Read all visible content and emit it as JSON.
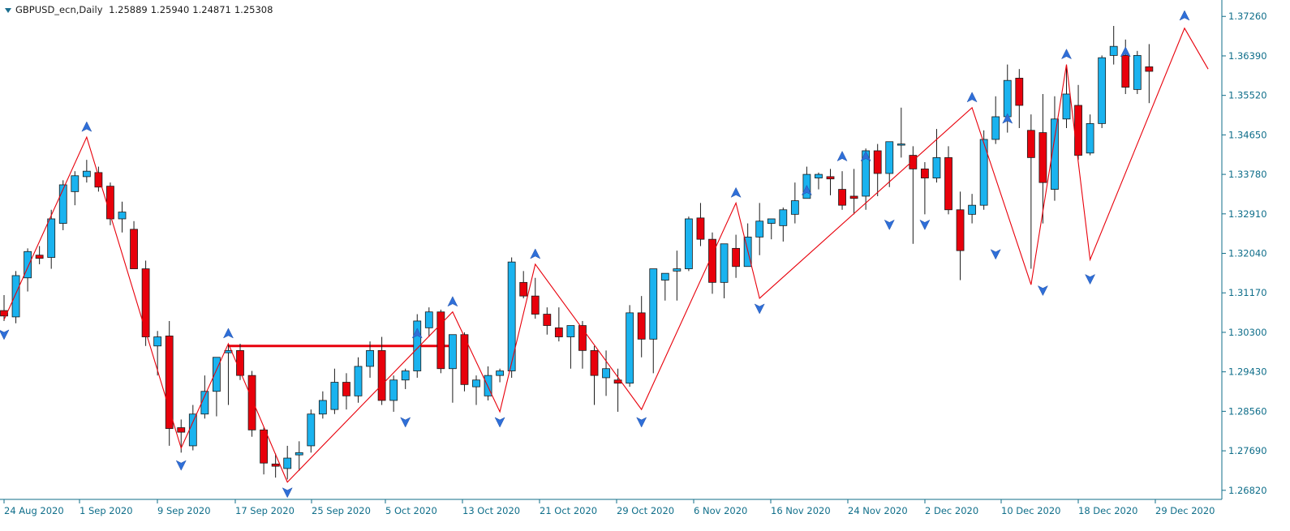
{
  "header": {
    "symbol": "GBPUSD_ecn,Daily",
    "open": "1.25889",
    "high": "1.25940",
    "low": "1.24871",
    "close": "1.25308"
  },
  "colors": {
    "bull": "#1ab3ef",
    "bear": "#e8000b",
    "zigzag": "#e8000b",
    "level": "#e8000b",
    "arrow": "#2f6fd8",
    "axis": "#0f6e8a",
    "wick": "#1b1b1b"
  },
  "chart_data": {
    "type": "candlestick",
    "y_ticks": [
      "1.37260",
      "1.36390",
      "1.35520",
      "1.34650",
      "1.33780",
      "1.32910",
      "1.32040",
      "1.31170",
      "1.30300",
      "1.29430",
      "1.28560",
      "1.27690",
      "1.26820"
    ],
    "x_labels": [
      "24 Aug 2020",
      "1 Sep 2020",
      "9 Sep 2020",
      "17 Sep 2020",
      "25 Sep 2020",
      "5 Oct 2020",
      "13 Oct 2020",
      "21 Oct 2020",
      "29 Oct 2020",
      "6 Nov 2020",
      "16 Nov 2020",
      "24 Nov 2020",
      "2 Dec 2020",
      "10 Dec 2020",
      "18 Dec 2020",
      "29 Dec 2020"
    ],
    "ylim": [
      1.2662,
      1.3755
    ],
    "candles": [
      [
        1.3078,
        1.3112,
        1.3055,
        1.3066
      ],
      [
        1.3064,
        1.3165,
        1.305,
        1.3155
      ],
      [
        1.315,
        1.3215,
        1.312,
        1.3208
      ],
      [
        1.32,
        1.322,
        1.318,
        1.3193
      ],
      [
        1.3195,
        1.33,
        1.317,
        1.328
      ],
      [
        1.327,
        1.3365,
        1.3255,
        1.3355
      ],
      [
        1.334,
        1.3385,
        1.331,
        1.3375
      ],
      [
        1.3373,
        1.341,
        1.336,
        1.3385
      ],
      [
        1.3382,
        1.3395,
        1.334,
        1.335
      ],
      [
        1.3352,
        1.336,
        1.3266,
        1.328
      ],
      [
        1.328,
        1.3318,
        1.325,
        1.3295
      ],
      [
        1.3257,
        1.3275,
        1.318,
        1.317
      ],
      [
        1.317,
        1.3188,
        1.3,
        1.302
      ],
      [
        1.3,
        1.3033,
        1.2935,
        1.302
      ],
      [
        1.3022,
        1.3055,
        1.278,
        1.2818
      ],
      [
        1.282,
        1.2838,
        1.2765,
        1.281
      ],
      [
        1.278,
        1.287,
        1.277,
        1.285
      ],
      [
        1.285,
        1.2935,
        1.284,
        1.29
      ],
      [
        1.29,
        1.2965,
        1.2845,
        1.2975
      ],
      [
        1.2985,
        1.3005,
        1.287,
        1.299
      ],
      [
        1.299,
        1.3005,
        1.2925,
        1.2935
      ],
      [
        1.2935,
        1.2945,
        1.28,
        1.2815
      ],
      [
        1.2815,
        1.282,
        1.2717,
        1.2742
      ],
      [
        1.274,
        1.2763,
        1.271,
        1.2735
      ],
      [
        1.273,
        1.278,
        1.2706,
        1.2753
      ],
      [
        1.276,
        1.279,
        1.2725,
        1.2765
      ],
      [
        1.278,
        1.286,
        1.2765,
        1.285
      ],
      [
        1.285,
        1.29,
        1.284,
        1.288
      ],
      [
        1.286,
        1.295,
        1.285,
        1.292
      ],
      [
        1.292,
        1.294,
        1.286,
        1.289
      ],
      [
        1.289,
        1.2975,
        1.2875,
        1.2955
      ],
      [
        1.2955,
        1.301,
        1.293,
        1.299
      ],
      [
        1.299,
        1.302,
        1.287,
        1.288
      ],
      [
        1.288,
        1.2935,
        1.2855,
        1.2925
      ],
      [
        1.2925,
        1.295,
        1.2905,
        1.2945
      ],
      [
        1.2945,
        1.307,
        1.293,
        1.3055
      ],
      [
        1.304,
        1.3085,
        1.302,
        1.3075
      ],
      [
        1.3075,
        1.308,
        1.294,
        1.295
      ],
      [
        1.295,
        1.3015,
        1.2875,
        1.3025
      ],
      [
        1.3025,
        1.303,
        1.29,
        1.2915
      ],
      [
        1.291,
        1.2935,
        1.287,
        1.2925
      ],
      [
        1.289,
        1.2955,
        1.288,
        1.2935
      ],
      [
        1.2935,
        1.295,
        1.292,
        1.2945
      ],
      [
        1.2945,
        1.3195,
        1.293,
        1.3185
      ],
      [
        1.314,
        1.3165,
        1.3105,
        1.311
      ],
      [
        1.311,
        1.315,
        1.306,
        1.307
      ],
      [
        1.307,
        1.3085,
        1.3025,
        1.3045
      ],
      [
        1.304,
        1.3085,
        1.301,
        1.302
      ],
      [
        1.302,
        1.3045,
        1.295,
        1.3045
      ],
      [
        1.3045,
        1.3055,
        1.295,
        1.299
      ],
      [
        1.299,
        1.3,
        1.287,
        1.2935
      ],
      [
        1.293,
        1.299,
        1.289,
        1.295
      ],
      [
        1.2925,
        1.295,
        1.2855,
        1.2918
      ],
      [
        1.2918,
        1.309,
        1.291,
        1.3073
      ],
      [
        1.3073,
        1.311,
        1.2975,
        1.3015
      ],
      [
        1.3015,
        1.317,
        1.294,
        1.317
      ],
      [
        1.3145,
        1.316,
        1.31,
        1.316
      ],
      [
        1.3165,
        1.321,
        1.31,
        1.317
      ],
      [
        1.317,
        1.3285,
        1.3165,
        1.328
      ],
      [
        1.3282,
        1.3315,
        1.322,
        1.3235
      ],
      [
        1.3235,
        1.325,
        1.3115,
        1.314
      ],
      [
        1.314,
        1.322,
        1.3105,
        1.3225
      ],
      [
        1.3215,
        1.3245,
        1.315,
        1.3175
      ],
      [
        1.3175,
        1.327,
        1.3175,
        1.324
      ],
      [
        1.324,
        1.3315,
        1.32,
        1.3275
      ],
      [
        1.327,
        1.328,
        1.3235,
        1.328
      ],
      [
        1.3265,
        1.3305,
        1.323,
        1.33
      ],
      [
        1.329,
        1.336,
        1.327,
        1.332
      ],
      [
        1.3325,
        1.3395,
        1.3325,
        1.3378
      ],
      [
        1.337,
        1.3382,
        1.3345,
        1.3378
      ],
      [
        1.3373,
        1.339,
        1.3332,
        1.3368
      ],
      [
        1.3345,
        1.3385,
        1.33,
        1.331
      ],
      [
        1.333,
        1.339,
        1.329,
        1.3325
      ],
      [
        1.333,
        1.3435,
        1.33,
        1.343
      ],
      [
        1.343,
        1.3445,
        1.333,
        1.338
      ],
      [
        1.338,
        1.345,
        1.335,
        1.345
      ],
      [
        1.3445,
        1.3525,
        1.3415,
        1.3445
      ],
      [
        1.342,
        1.344,
        1.3225,
        1.339
      ],
      [
        1.339,
        1.3405,
        1.329,
        1.337
      ],
      [
        1.337,
        1.3478,
        1.336,
        1.3415
      ],
      [
        1.3415,
        1.344,
        1.329,
        1.33
      ],
      [
        1.33,
        1.334,
        1.3145,
        1.321
      ],
      [
        1.329,
        1.3335,
        1.327,
        1.331
      ],
      [
        1.331,
        1.3475,
        1.33,
        1.3455
      ],
      [
        1.3455,
        1.355,
        1.3445,
        1.3505
      ],
      [
        1.3505,
        1.362,
        1.347,
        1.3585
      ],
      [
        1.359,
        1.361,
        1.348,
        1.353
      ],
      [
        1.3475,
        1.351,
        1.317,
        1.3415
      ],
      [
        1.347,
        1.3555,
        1.327,
        1.336
      ],
      [
        1.3345,
        1.355,
        1.332,
        1.35
      ],
      [
        1.35,
        1.362,
        1.348,
        1.3555
      ],
      [
        1.353,
        1.3575,
        1.341,
        1.342
      ],
      [
        1.3425,
        1.351,
        1.342,
        1.349
      ],
      [
        1.349,
        1.364,
        1.348,
        1.3635
      ],
      [
        1.364,
        1.3705,
        1.362,
        1.366
      ],
      [
        1.364,
        1.3675,
        1.3555,
        1.357
      ],
      [
        1.3565,
        1.365,
        1.3555,
        1.364
      ],
      [
        1.3615,
        1.3665,
        1.3535,
        1.3605
      ]
    ],
    "zigzag": [
      [
        0,
        1.3058
      ],
      [
        7,
        1.346
      ],
      [
        15,
        1.2775
      ],
      [
        19,
        1.3005
      ],
      [
        24,
        1.27
      ],
      [
        38,
        1.3075
      ],
      [
        42,
        1.2855
      ],
      [
        45,
        1.318
      ],
      [
        54,
        1.286
      ],
      [
        62,
        1.3315
      ],
      [
        64,
        1.3105
      ],
      [
        82,
        1.3525
      ],
      [
        87,
        1.3135
      ],
      [
        90,
        1.362
      ],
      [
        92,
        1.319
      ],
      [
        100,
        1.37
      ],
      [
        102,
        1.361
      ]
    ],
    "up_arrows": [
      [
        7,
        1.346
      ],
      [
        19,
        1.3005
      ],
      [
        35,
        1.3005
      ],
      [
        38,
        1.3075
      ],
      [
        45,
        1.318
      ],
      [
        62,
        1.3315
      ],
      [
        68,
        1.332
      ],
      [
        71,
        1.3395
      ],
      [
        73,
        1.3395
      ],
      [
        82,
        1.3525
      ],
      [
        85,
        1.3478
      ],
      [
        90,
        1.362
      ],
      [
        95,
        1.3625
      ],
      [
        100,
        1.3705
      ]
    ],
    "down_arrows": [
      [
        0,
        1.3048
      ],
      [
        15,
        1.276
      ],
      [
        24,
        1.27
      ],
      [
        34,
        1.2855
      ],
      [
        42,
        1.2855
      ],
      [
        54,
        1.2855
      ],
      [
        64,
        1.3105
      ],
      [
        75,
        1.329
      ],
      [
        78,
        1.329
      ],
      [
        84,
        1.3225
      ],
      [
        88,
        1.3145
      ],
      [
        92,
        1.317
      ]
    ],
    "level_line": {
      "price": 1.3,
      "from": 19,
      "to": 38
    }
  }
}
